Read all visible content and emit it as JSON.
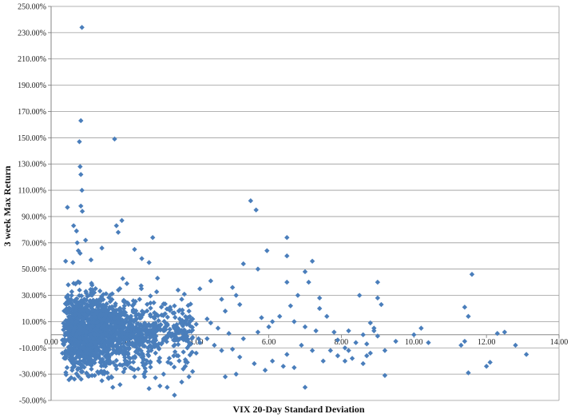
{
  "chart_data": {
    "type": "scatter",
    "title": "",
    "xlabel": "VIX 20-Day Standard  Deviation",
    "ylabel": "3 week Max Return",
    "xlim": [
      0,
      14
    ],
    "ylim": [
      -50,
      250
    ],
    "x_tick_labels": [
      "0.00",
      "2.00",
      "4.00",
      "6.00",
      "8.00",
      "10.00",
      "12.00",
      "14.00"
    ],
    "y_tick_labels": [
      "-50.00%",
      "-30.00%",
      "-10.00%",
      "10.00%",
      "30.00%",
      "50.00%",
      "70.00%",
      "90.00%",
      "110.00%",
      "130.00%",
      "150.00%",
      "170.00%",
      "190.00%",
      "210.00%",
      "230.00%",
      "250.00%"
    ],
    "grid": "horizontal",
    "legend": "none",
    "marker_color": "#4A7EBB",
    "marker": "diamond",
    "series": [
      {
        "points": [
          [
            0.85,
            234
          ],
          [
            0.82,
            163
          ],
          [
            0.78,
            147
          ],
          [
            1.75,
            149
          ],
          [
            0.8,
            128
          ],
          [
            0.82,
            122
          ],
          [
            0.85,
            110
          ],
          [
            0.82,
            98
          ],
          [
            0.86,
            94
          ],
          [
            0.45,
            97
          ],
          [
            0.62,
            83
          ],
          [
            0.7,
            79
          ],
          [
            1.8,
            83
          ],
          [
            1.95,
            87
          ],
          [
            1.85,
            78
          ],
          [
            0.72,
            70
          ],
          [
            0.95,
            72
          ],
          [
            1.4,
            66
          ],
          [
            0.75,
            64
          ],
          [
            0.8,
            62
          ],
          [
            2.8,
            74
          ],
          [
            2.3,
            65
          ],
          [
            2.5,
            58
          ],
          [
            2.7,
            55
          ],
          [
            1.1,
            57
          ],
          [
            0.6,
            55
          ],
          [
            0.4,
            56
          ],
          [
            5.5,
            102
          ],
          [
            5.65,
            95
          ],
          [
            5.95,
            64
          ],
          [
            5.3,
            54
          ],
          [
            5.7,
            50
          ],
          [
            6.5,
            74
          ],
          [
            6.5,
            60
          ],
          [
            7.2,
            56
          ],
          [
            7.0,
            48
          ],
          [
            6.5,
            40
          ],
          [
            7.1,
            40
          ],
          [
            7.4,
            28
          ],
          [
            7.4,
            20
          ],
          [
            4.4,
            41
          ],
          [
            4.1,
            35
          ],
          [
            4.7,
            27
          ],
          [
            5.1,
            30
          ],
          [
            5.0,
            36
          ],
          [
            5.2,
            23
          ],
          [
            4.8,
            18
          ],
          [
            4.3,
            12
          ],
          [
            4.4,
            9
          ],
          [
            4.6,
            5
          ],
          [
            4.9,
            1
          ],
          [
            5.3,
            -3
          ],
          [
            5.7,
            2
          ],
          [
            5.8,
            13
          ],
          [
            6.1,
            10
          ],
          [
            6.3,
            14
          ],
          [
            6.0,
            6
          ],
          [
            6.6,
            22
          ],
          [
            6.8,
            30
          ],
          [
            6.7,
            10
          ],
          [
            7.0,
            6
          ],
          [
            7.3,
            3
          ],
          [
            7.6,
            14
          ],
          [
            7.8,
            2
          ],
          [
            7.7,
            -12
          ],
          [
            7.9,
            -4
          ],
          [
            8.1,
            -10
          ],
          [
            8.2,
            3
          ],
          [
            8.4,
            -6
          ],
          [
            8.6,
            0
          ],
          [
            8.5,
            30
          ],
          [
            8.8,
            9
          ],
          [
            8.9,
            3
          ],
          [
            9.0,
            40
          ],
          [
            9.0,
            28
          ],
          [
            9.1,
            23
          ],
          [
            8.8,
            -14
          ],
          [
            8.3,
            -18
          ],
          [
            8.1,
            -20
          ],
          [
            8.7,
            -16
          ],
          [
            9.2,
            -12
          ],
          [
            9.2,
            -31
          ],
          [
            9.0,
            -1
          ],
          [
            8.9,
            5
          ],
          [
            8.7,
            -7
          ],
          [
            8.6,
            -22
          ],
          [
            8.2,
            -12
          ],
          [
            7.9,
            -16
          ],
          [
            7.5,
            -20
          ],
          [
            7.2,
            -12
          ],
          [
            6.9,
            -8
          ],
          [
            6.5,
            -15
          ],
          [
            6.1,
            -20
          ],
          [
            5.9,
            -27
          ],
          [
            5.6,
            -22
          ],
          [
            5.2,
            -17
          ],
          [
            5.0,
            -11
          ],
          [
            4.7,
            -12
          ],
          [
            4.5,
            -8
          ],
          [
            4.3,
            -3
          ],
          [
            4.8,
            -32
          ],
          [
            5.1,
            -30
          ],
          [
            6.4,
            -24
          ],
          [
            6.7,
            -25
          ],
          [
            7.0,
            -40
          ],
          [
            9.5,
            -5
          ],
          [
            10.0,
            0
          ],
          [
            10.2,
            5
          ],
          [
            10.4,
            -6
          ],
          [
            11.3,
            -8
          ],
          [
            11.4,
            -5
          ],
          [
            11.4,
            21
          ],
          [
            11.5,
            14
          ],
          [
            11.6,
            46
          ],
          [
            11.5,
            -29
          ],
          [
            12.0,
            -24
          ],
          [
            12.1,
            -21
          ],
          [
            12.3,
            1
          ],
          [
            12.5,
            2
          ],
          [
            12.8,
            -8
          ],
          [
            13.1,
            -15
          ],
          [
            3.4,
            -46
          ],
          [
            3.2,
            -40
          ],
          [
            3.0,
            -39
          ],
          [
            2.7,
            -41
          ],
          [
            1.9,
            -38
          ],
          [
            1.7,
            -40
          ],
          [
            1.4,
            -35
          ],
          [
            1.2,
            -31
          ],
          [
            2.3,
            -32
          ],
          [
            3.6,
            -36
          ],
          [
            3.8,
            -32
          ],
          [
            3.9,
            -28
          ],
          [
            3.7,
            -24
          ],
          [
            3.5,
            34
          ],
          [
            3.6,
            27
          ],
          [
            3.4,
            22
          ],
          [
            3.8,
            18
          ],
          [
            3.9,
            12
          ],
          [
            4.0,
            8
          ],
          [
            3.9,
            -2
          ],
          [
            4.1,
            -6
          ],
          [
            4.0,
            -14
          ],
          [
            3.7,
            -19
          ],
          [
            3.3,
            -22
          ],
          [
            3.1,
            -30
          ],
          [
            2.6,
            -28
          ],
          [
            2.4,
            -26
          ],
          [
            2.1,
            -23
          ],
          [
            1.8,
            -26
          ],
          [
            1.5,
            -24
          ],
          [
            1.1,
            -22
          ],
          [
            0.8,
            -20
          ],
          [
            0.55,
            -14
          ],
          [
            0.4,
            -18
          ]
        ]
      }
    ]
  }
}
